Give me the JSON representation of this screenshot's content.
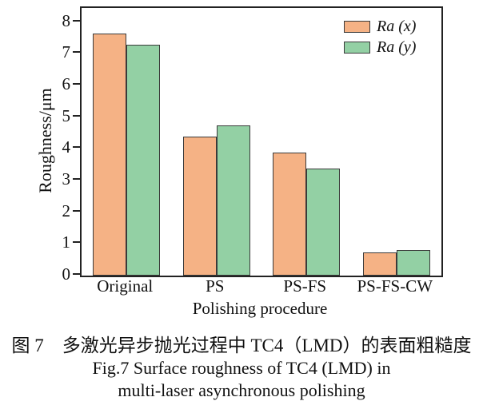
{
  "figure": {
    "caption_zh": "图 7　多激光异步抛光过程中 TC4（LMD）的表面粗糙度",
    "caption_en_line1": "Fig.7 Surface roughness of TC4 (LMD) in",
    "caption_en_line2": "multi-laser asynchronous polishing"
  },
  "chart_data": {
    "type": "bar",
    "title": "",
    "categories": [
      "Original",
      "PS",
      "PS-FS",
      "PS-FS-CW"
    ],
    "series": [
      {
        "name": "Ra (x)",
        "color": "#F5B285",
        "values": [
          7.65,
          4.38,
          3.88,
          0.72
        ]
      },
      {
        "name": "Ra (y)",
        "color": "#93D0A4",
        "values": [
          7.28,
          4.74,
          3.38,
          0.81
        ]
      }
    ],
    "xlabel": "Polishing procedure",
    "ylabel": "Roughness/μm",
    "ylim": [
      0,
      8.45
    ],
    "yticks": [
      0,
      1,
      2,
      3,
      4,
      5,
      6,
      7,
      8
    ],
    "grid": false,
    "legend_position": "top-right",
    "bar_edge_color": "#3a3a3a",
    "axis_color": "#222222"
  }
}
